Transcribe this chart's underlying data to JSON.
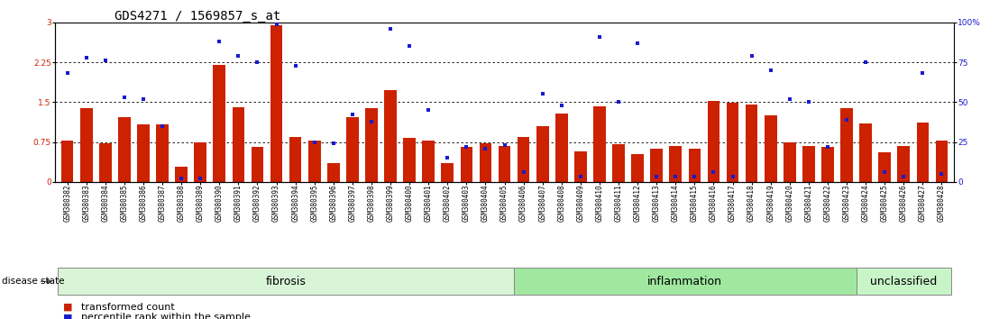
{
  "title": "GDS4271 / 1569857_s_at",
  "samples": [
    "GSM380382",
    "GSM380383",
    "GSM380384",
    "GSM380385",
    "GSM380386",
    "GSM380387",
    "GSM380388",
    "GSM380389",
    "GSM380390",
    "GSM380391",
    "GSM380392",
    "GSM380393",
    "GSM380394",
    "GSM380395",
    "GSM380396",
    "GSM380397",
    "GSM380398",
    "GSM380399",
    "GSM380400",
    "GSM380401",
    "GSM380402",
    "GSM380403",
    "GSM380404",
    "GSM380405",
    "GSM380406",
    "GSM380407",
    "GSM380408",
    "GSM380409",
    "GSM380410",
    "GSM380411",
    "GSM380412",
    "GSM380413",
    "GSM380414",
    "GSM380415",
    "GSM380416",
    "GSM380417",
    "GSM380418",
    "GSM380419",
    "GSM380420",
    "GSM380421",
    "GSM380422",
    "GSM380423",
    "GSM380424",
    "GSM380425",
    "GSM380426",
    "GSM380427",
    "GSM380428"
  ],
  "red_bars": [
    0.78,
    1.38,
    0.72,
    1.22,
    1.08,
    1.08,
    0.28,
    0.75,
    2.2,
    1.4,
    0.65,
    2.95,
    0.85,
    0.78,
    0.35,
    1.22,
    1.38,
    1.72,
    0.82,
    0.78,
    0.35,
    0.65,
    0.72,
    0.68,
    0.85,
    1.05,
    1.28,
    0.58,
    1.42,
    0.7,
    0.52,
    0.62,
    0.68,
    0.62,
    1.52,
    1.48,
    1.45,
    1.25,
    0.75,
    0.68,
    0.65,
    1.38,
    1.1,
    0.55,
    0.68,
    1.12,
    0.78
  ],
  "blue_dots_pct": [
    68,
    78,
    76,
    53,
    52,
    35,
    2,
    2,
    88,
    79,
    75,
    99,
    73,
    25,
    24,
    42,
    38,
    96,
    85,
    45,
    15,
    22,
    21,
    23,
    6,
    55,
    48,
    3,
    91,
    50,
    87,
    3,
    3,
    3,
    6,
    3,
    79,
    70,
    52,
    50,
    22,
    39,
    75,
    6,
    3,
    68,
    5
  ],
  "groups": [
    {
      "label": "fibrosis",
      "start": 0,
      "end": 24,
      "color": "#d8f5d8"
    },
    {
      "label": "inflammation",
      "start": 24,
      "end": 42,
      "color": "#a0e8a0"
    },
    {
      "label": "unclassified",
      "start": 42,
      "end": 47,
      "color": "#c8f5c8"
    }
  ],
  "ylim_left": [
    0,
    3.0
  ],
  "ylim_right": [
    0,
    100
  ],
  "yticks_left": [
    0,
    0.75,
    1.5,
    2.25,
    3.0
  ],
  "ytick_left_labels": [
    "0",
    "0.75",
    "1.5",
    "2.25",
    "3"
  ],
  "yticks_right": [
    0,
    25,
    50,
    75,
    100
  ],
  "ytick_right_labels": [
    "0",
    "25",
    "50",
    "75",
    "100%"
  ],
  "hlines": [
    0.75,
    1.5,
    2.25
  ],
  "bar_color": "#cc2200",
  "dot_color": "#1a1acc",
  "title_fontsize": 10,
  "tick_fontsize": 5.5,
  "legend_fontsize": 8,
  "group_label_fontsize": 9,
  "disease_state_fontsize": 7.5,
  "ytick_left_color": "#cc2200",
  "ytick_right_color": "#1a1acc"
}
